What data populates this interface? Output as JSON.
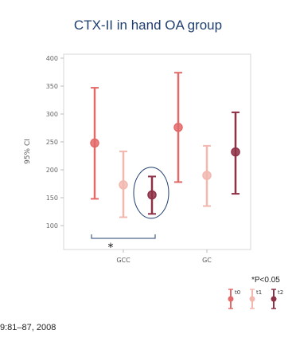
{
  "title": "CTX-II in hand OA group",
  "significance_note": "*P<0.05",
  "citation": "9:81–87, 2008",
  "chart_data": {
    "type": "errorbar",
    "title": "CTX-II in hand OA group",
    "ylabel": "95% CI",
    "xlabel": "",
    "ylim": [
      90,
      410
    ],
    "yticks": [
      100,
      150,
      200,
      250,
      300,
      350,
      400
    ],
    "categories": [
      "GCC",
      "GC"
    ],
    "grid": false,
    "legend_position": "bottom-right",
    "series": [
      {
        "name": "t0",
        "color": "#e46a6a",
        "points": [
          {
            "category": "GCC",
            "mean": 248,
            "low": 148,
            "high": 347
          },
          {
            "category": "GC",
            "mean": 276,
            "low": 178,
            "high": 374
          }
        ]
      },
      {
        "name": "t1",
        "color": "#f2b8b0",
        "points": [
          {
            "category": "GCC",
            "mean": 173,
            "low": 115,
            "high": 233
          },
          {
            "category": "GC",
            "mean": 190,
            "low": 135,
            "high": 243
          }
        ]
      },
      {
        "name": "t2",
        "color": "#8e3046",
        "points": [
          {
            "category": "GCC",
            "mean": 155,
            "low": 121,
            "high": 188
          },
          {
            "category": "GC",
            "mean": 232,
            "low": 157,
            "high": 303
          }
        ]
      }
    ],
    "annotations": [
      {
        "type": "significance-bracket",
        "text": "*",
        "category": "GCC"
      },
      {
        "type": "ellipse-highlight",
        "series": "t2",
        "category": "GCC"
      }
    ]
  }
}
